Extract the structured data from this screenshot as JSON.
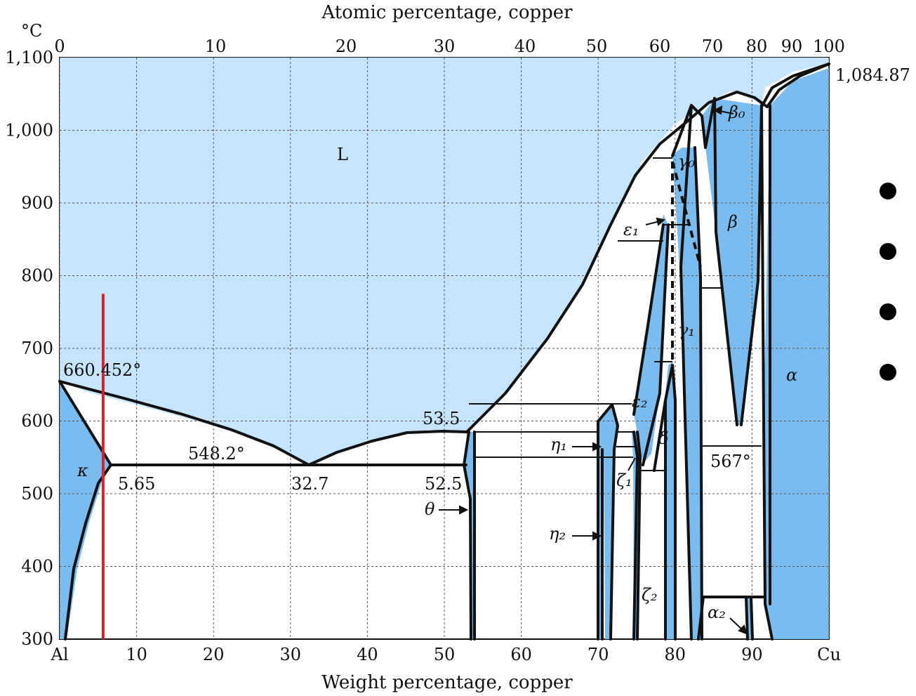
{
  "chart_data": {
    "type": "phase-diagram",
    "title_top_axis": "Atomic percentage, copper",
    "xlabel": "Weight percentage, copper",
    "ylabel_unit": "°C",
    "x_range": [
      0,
      100
    ],
    "y_range": [
      300,
      1100
    ],
    "x_ticks_bottom": [
      "Al",
      "10",
      "20",
      "30",
      "40",
      "50",
      "60",
      "70",
      "80",
      "90",
      "Cu"
    ],
    "x_ticks_top": [
      "0",
      "10",
      "20",
      "30",
      "40",
      "50",
      "60",
      "70",
      "80",
      "90",
      "100"
    ],
    "y_ticks": [
      "300",
      "400",
      "500",
      "600",
      "700",
      "800",
      "900",
      "1,000",
      "1,100"
    ],
    "colors": {
      "liquid": "#c6e4fb",
      "phase_field": "#7bbcf0",
      "two_phase": "#ffffff",
      "line": "#111111",
      "marker_line": "#d9232a"
    },
    "annotations": [
      {
        "text": "660.452°",
        "x": 0,
        "y": 660.452
      },
      {
        "text": "548.2°",
        "x": 22,
        "y": 548.2
      },
      {
        "text": "5.65",
        "x": 5.65,
        "y": 548.2
      },
      {
        "text": "32.7",
        "x": 32.7,
        "y": 548.2
      },
      {
        "text": "53.5",
        "x": 53.5,
        "y": 591
      },
      {
        "text": "52.5",
        "x": 52.5,
        "y": 548.2
      },
      {
        "text": "567°",
        "x": 88,
        "y": 567
      },
      {
        "text": "1,084.87 °",
        "x": 100,
        "y": 1084.87
      }
    ],
    "phase_labels": [
      {
        "text": "L",
        "kind": "plain"
      },
      {
        "text": "κ",
        "kind": "greek"
      },
      {
        "text": "θ",
        "kind": "greek"
      },
      {
        "text": "η₁",
        "kind": "greek"
      },
      {
        "text": "η₂",
        "kind": "greek"
      },
      {
        "text": "ε₁",
        "kind": "greek"
      },
      {
        "text": "ε₂",
        "kind": "greek"
      },
      {
        "text": "ζ₁",
        "kind": "greek"
      },
      {
        "text": "ζ₂",
        "kind": "greek"
      },
      {
        "text": "δ",
        "kind": "greek"
      },
      {
        "text": "γ₀",
        "kind": "greek"
      },
      {
        "text": "γ₁",
        "kind": "greek"
      },
      {
        "text": "β₀",
        "kind": "greek"
      },
      {
        "text": "β",
        "kind": "greek"
      },
      {
        "text": "α",
        "kind": "greek"
      },
      {
        "text": "α₂",
        "kind": "greek"
      }
    ],
    "marker_line": {
      "x_wt_pct": 5.65,
      "y_from": 300,
      "y_to": 775
    },
    "bullets_count": 4
  }
}
